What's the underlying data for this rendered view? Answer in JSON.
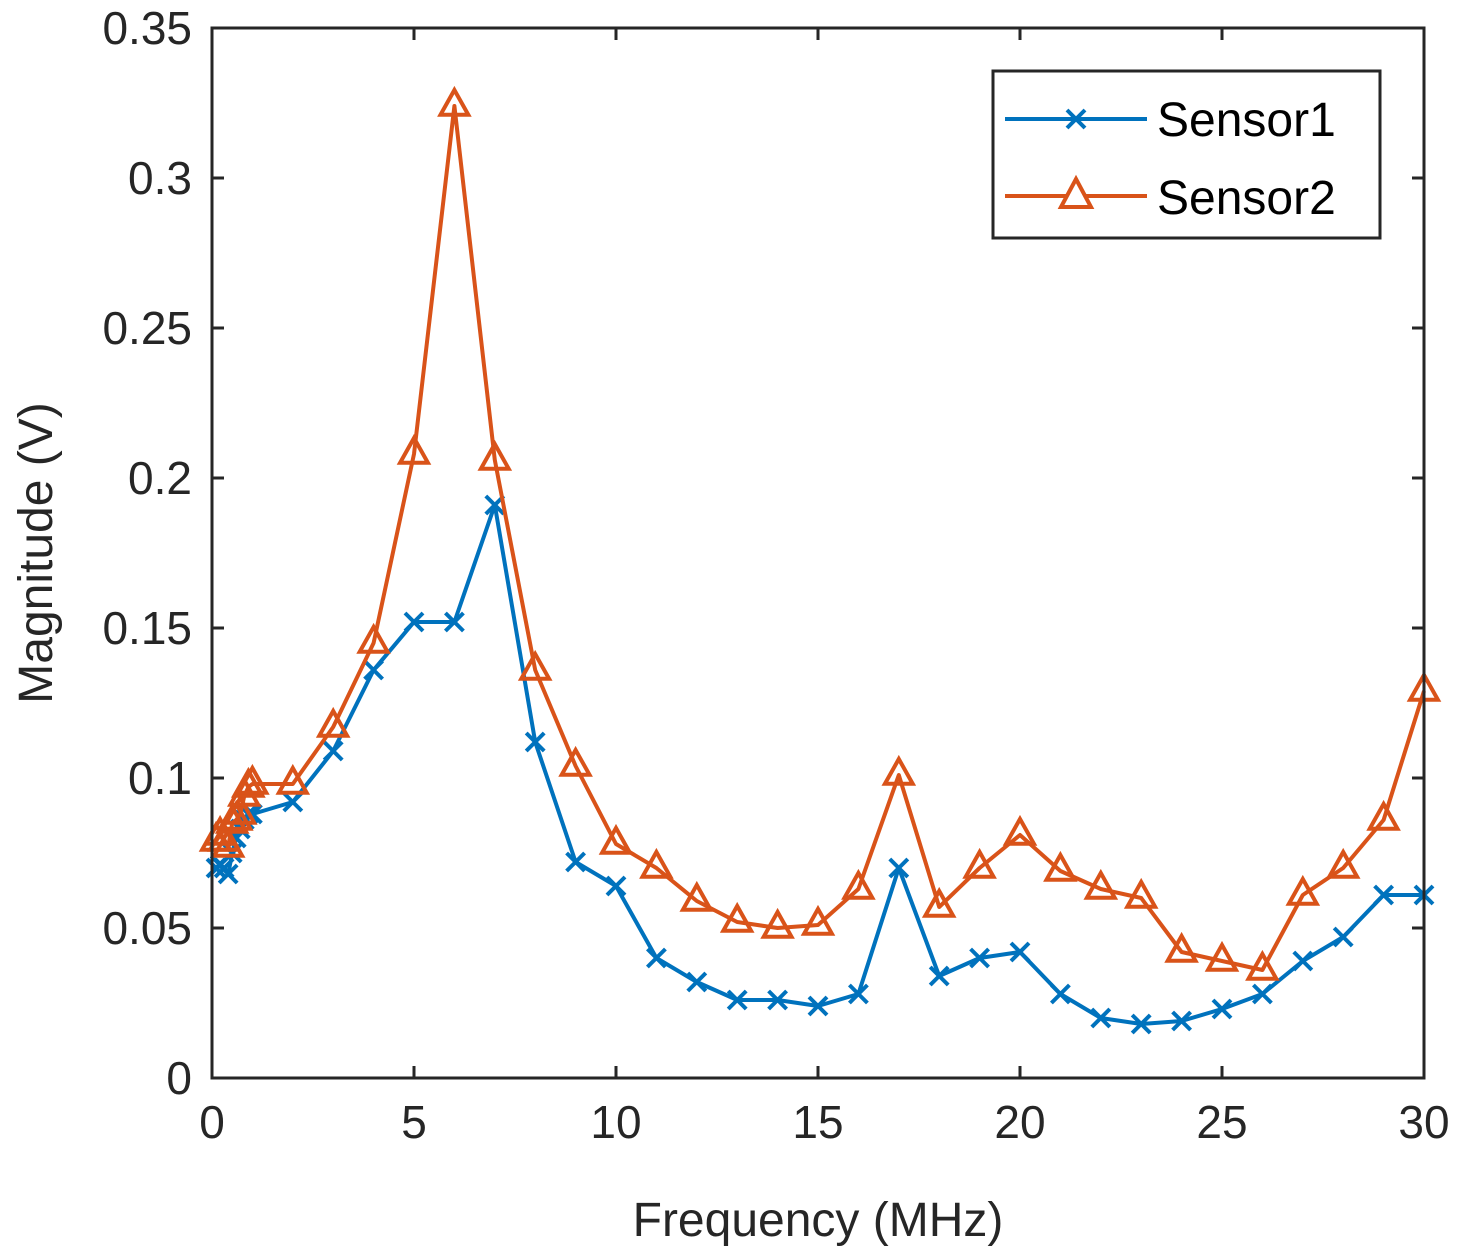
{
  "chart_data": {
    "type": "line",
    "title": "",
    "xlabel": "Frequency (MHz)",
    "ylabel": "Magnitude (V)",
    "xlim": [
      0,
      30
    ],
    "ylim": [
      0,
      0.35
    ],
    "xticks": [
      0,
      5,
      10,
      15,
      20,
      25,
      30
    ],
    "xtick_labels": [
      "0",
      "5",
      "10",
      "15",
      "20",
      "25",
      "30"
    ],
    "yticks": [
      0,
      0.05,
      0.1,
      0.15,
      0.2,
      0.25,
      0.3,
      0.35
    ],
    "ytick_labels": [
      "0",
      "0.05",
      "0.1",
      "0.15",
      "0.2",
      "0.25",
      "0.3",
      "0.35"
    ],
    "grid": false,
    "legend_position": "top-right",
    "series": [
      {
        "name": "Sensor1",
        "color": "#0072BD",
        "marker": "x",
        "x": [
          0.1,
          0.2,
          0.3,
          0.4,
          0.5,
          0.6,
          0.7,
          0.8,
          0.9,
          1,
          2,
          3,
          4,
          5,
          6,
          7,
          8,
          9,
          10,
          11,
          12,
          13,
          14,
          15,
          16,
          17,
          18,
          19,
          20,
          21,
          22,
          23,
          24,
          25,
          26,
          27,
          28,
          29,
          30
        ],
        "y": [
          0.07,
          0.071,
          0.07,
          0.068,
          0.075,
          0.08,
          0.083,
          0.086,
          0.088,
          0.088,
          0.092,
          0.109,
          0.136,
          0.152,
          0.152,
          0.191,
          0.112,
          0.072,
          0.064,
          0.04,
          0.032,
          0.026,
          0.026,
          0.024,
          0.028,
          0.07,
          0.034,
          0.04,
          0.042,
          0.028,
          0.02,
          0.018,
          0.019,
          0.023,
          0.028,
          0.039,
          0.047,
          0.061,
          0.061
        ]
      },
      {
        "name": "Sensor2",
        "color": "#D95319",
        "marker": "triangle",
        "x": [
          0.1,
          0.2,
          0.3,
          0.4,
          0.5,
          0.6,
          0.7,
          0.8,
          0.9,
          1,
          2,
          3,
          4,
          5,
          6,
          7,
          8,
          9,
          10,
          11,
          12,
          13,
          14,
          15,
          16,
          17,
          18,
          19,
          20,
          21,
          22,
          23,
          24,
          25,
          26,
          27,
          28,
          29,
          30
        ],
        "y": [
          0.079,
          0.081,
          0.079,
          0.077,
          0.085,
          0.086,
          0.088,
          0.094,
          0.097,
          0.098,
          0.098,
          0.117,
          0.145,
          0.208,
          0.324,
          0.206,
          0.136,
          0.104,
          0.078,
          0.07,
          0.059,
          0.052,
          0.05,
          0.051,
          0.063,
          0.101,
          0.057,
          0.07,
          0.081,
          0.069,
          0.063,
          0.06,
          0.042,
          0.039,
          0.036,
          0.061,
          0.07,
          0.086,
          0.129
        ]
      }
    ]
  }
}
